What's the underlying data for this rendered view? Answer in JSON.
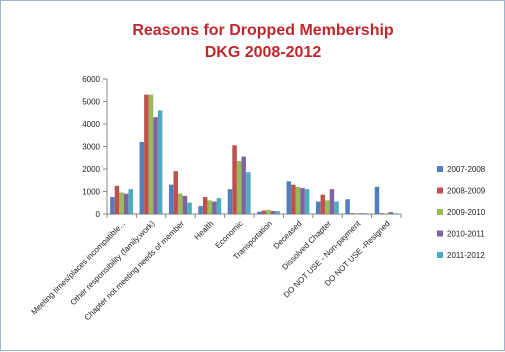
{
  "chart_data": {
    "type": "bar",
    "title_lines": [
      "Reasons for Dropped Membership",
      "DKG 2008-2012"
    ],
    "xlabel": "",
    "ylabel": "",
    "ylim": [
      0,
      6000
    ],
    "yticks": [
      0,
      1000,
      2000,
      3000,
      4000,
      5000,
      6000
    ],
    "grid": false,
    "legend_position": "right",
    "categories": [
      "Meeting times/places incompatible...",
      "Other responsibility (family,work)",
      "Chapter not meeting needs of member",
      "Health",
      "Economic",
      "Transportation",
      "Deceased",
      "Dissolved Chapter",
      "DO NOT USE - Non-payment",
      "DO NOT USE -Resigned"
    ],
    "series": [
      {
        "name": "2007-2008",
        "color": "#4f7fbe",
        "values": [
          750,
          3200,
          1300,
          350,
          1100,
          100,
          1450,
          550,
          650,
          1200
        ]
      },
      {
        "name": "2008-2009",
        "color": "#c0504d",
        "values": [
          1250,
          5300,
          1900,
          750,
          3050,
          150,
          1300,
          850,
          30,
          30
        ]
      },
      {
        "name": "2009-2010",
        "color": "#9bbb59",
        "values": [
          950,
          5300,
          900,
          600,
          2350,
          180,
          1200,
          600,
          20,
          20
        ]
      },
      {
        "name": "2010-2011",
        "color": "#8064a2",
        "values": [
          900,
          4300,
          800,
          550,
          2550,
          130,
          1150,
          1100,
          20,
          80
        ]
      },
      {
        "name": "2011-2012",
        "color": "#4bacc6",
        "values": [
          1100,
          4600,
          500,
          700,
          1850,
          120,
          1100,
          550,
          20,
          20
        ]
      }
    ]
  }
}
